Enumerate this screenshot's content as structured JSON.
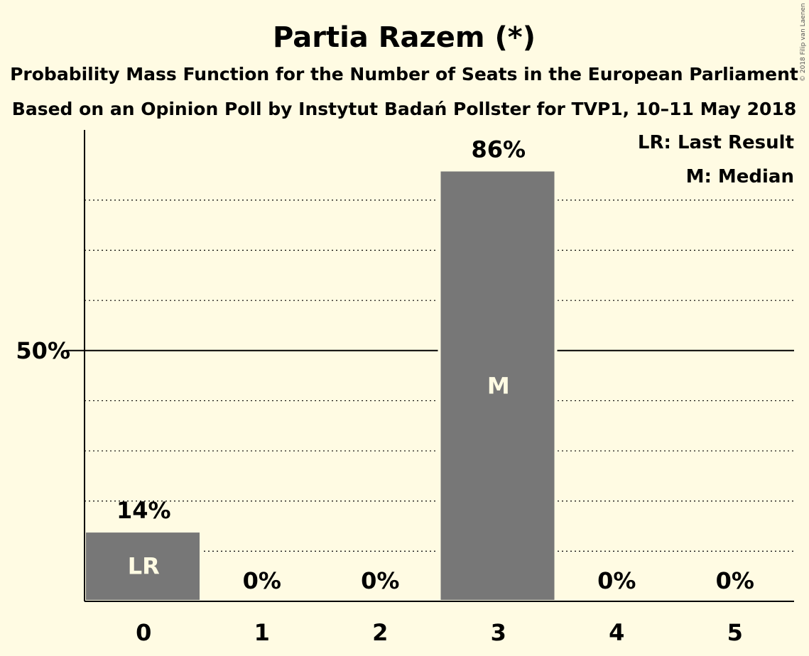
{
  "title": "Partia Razem (*)",
  "subtitle_1": "Probability Mass Function for the Number of Seats in the European Parliament",
  "subtitle_2": "Based on an Opinion Poll by Instytut Badań Pollster for TVP1, 10–11 May 2018",
  "copyright": "© 2018 Filip van Laenen",
  "legend": {
    "last_result": "LR: Last Result",
    "median": "M: Median"
  },
  "colors": {
    "background": "#fffbe3",
    "bar": "#777777",
    "axis": "#000000"
  },
  "chart_data": {
    "type": "bar",
    "categories": [
      "0",
      "1",
      "2",
      "3",
      "4",
      "5"
    ],
    "values": [
      14,
      0,
      0,
      86,
      0,
      0
    ],
    "value_labels": [
      "14%",
      "0%",
      "0%",
      "86%",
      "0%",
      "0%"
    ],
    "inbar_labels": [
      "LR",
      "",
      "",
      "M",
      "",
      ""
    ],
    "ylim": [
      0,
      94
    ],
    "yticks": [
      50
    ],
    "ytick_labels": [
      "50%"
    ],
    "gridlines": [
      10,
      20,
      30,
      40,
      60,
      70,
      80
    ],
    "legend_placement": "top-right",
    "grid": true
  }
}
